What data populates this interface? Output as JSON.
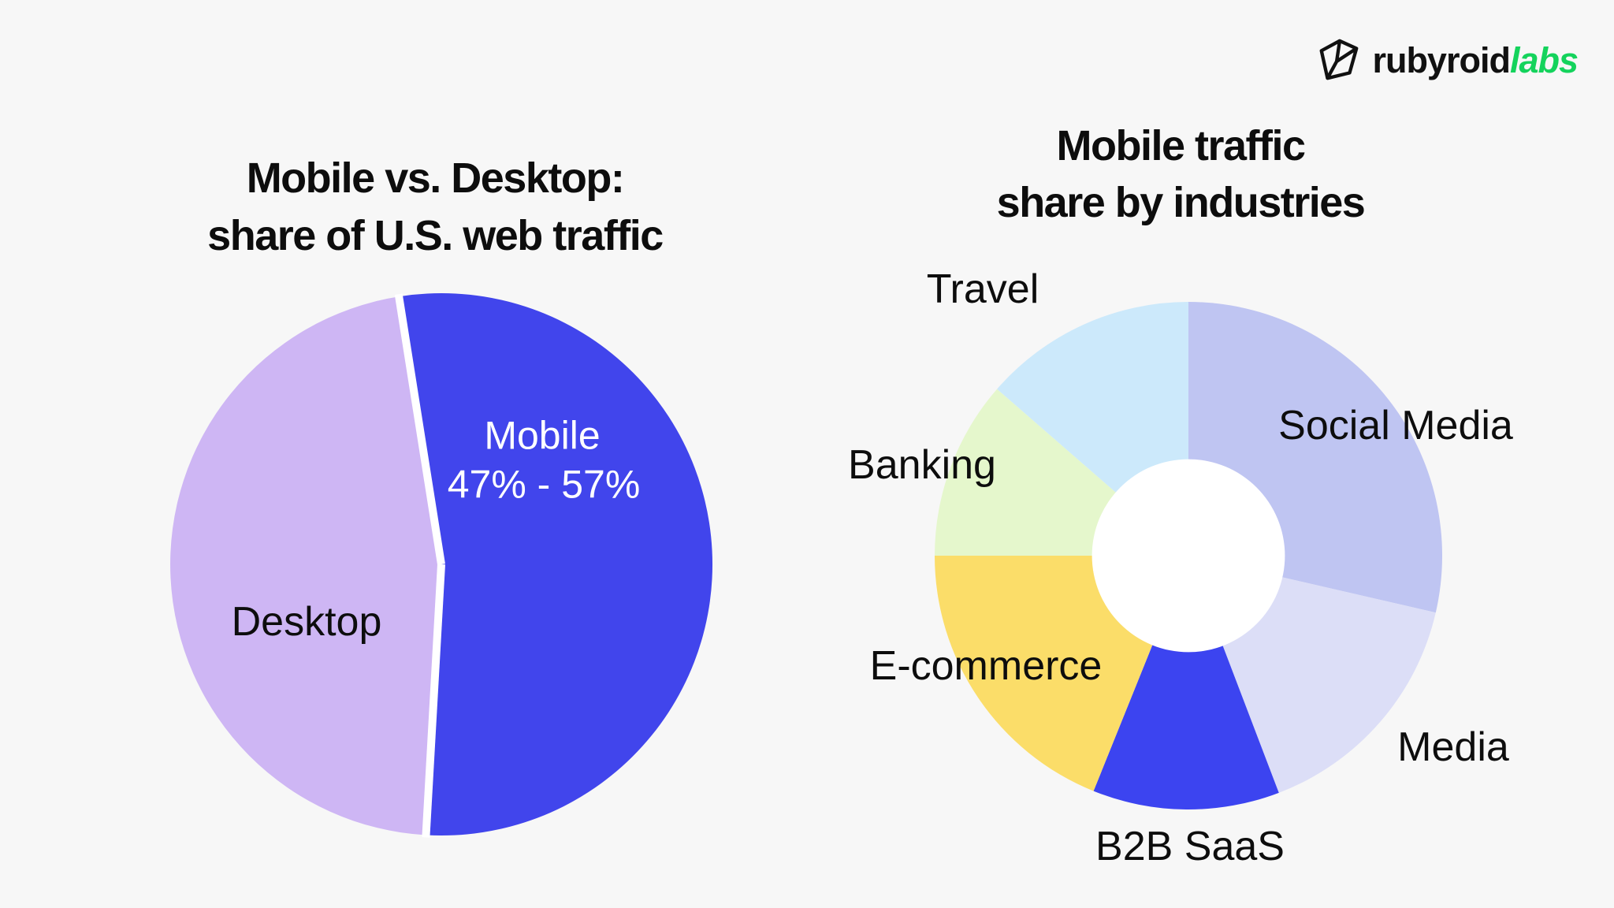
{
  "page": {
    "background_color": "#F7F7F7"
  },
  "header": {
    "logo": {
      "brand": "rubyroid",
      "suffix": "labs",
      "brand_color": "#111111",
      "suffix_color": "#14D35C",
      "icon": "gem-outline-icon"
    }
  },
  "chart_data": [
    {
      "id": "us-web-traffic-split",
      "type": "pie",
      "title": "Mobile vs. Desktop: share of U.S. web traffic",
      "title_lines": [
        "Mobile vs. Desktop:",
        "share of U.S. web traffic"
      ],
      "legend": "none",
      "labels_on_chart": true,
      "start_angle_deg": -9,
      "separator_color": "#FFFFFF",
      "slices": [
        {
          "label": "Mobile",
          "value_label": "47% - 57%",
          "share_pct": 53.4,
          "color": "#4145EC",
          "text_color": "#FFFFFF"
        },
        {
          "label": "Desktop",
          "value_label": "",
          "share_pct": 46.6,
          "color": "#CEB6F4",
          "text_color": "#111111"
        }
      ]
    },
    {
      "id": "mobile-traffic-share-by-industries",
      "type": "donut",
      "title": "Mobile traffic share by industries",
      "title_lines": [
        "Mobile traffic",
        "share by industries"
      ],
      "legend": "none",
      "labels_on_chart": true,
      "start_angle_deg": 0,
      "inner_radius_ratio": 0.38,
      "hole_color": "#FFFFFF",
      "slices": [
        {
          "label": "Social Media",
          "share_pct": 28.6,
          "color": "#BFC5F2"
        },
        {
          "label": "Media",
          "share_pct": 15.6,
          "color": "#DCDEF7"
        },
        {
          "label": "B2B SaaS",
          "share_pct": 11.9,
          "color": "#3C44F0"
        },
        {
          "label": "E-commerce",
          "share_pct": 18.9,
          "color": "#FBDD69"
        },
        {
          "label": "Banking",
          "share_pct": 11.4,
          "color": "#E5F7CC"
        },
        {
          "label": "Travel",
          "share_pct": 13.6,
          "color": "#CCE9FB"
        }
      ]
    }
  ]
}
